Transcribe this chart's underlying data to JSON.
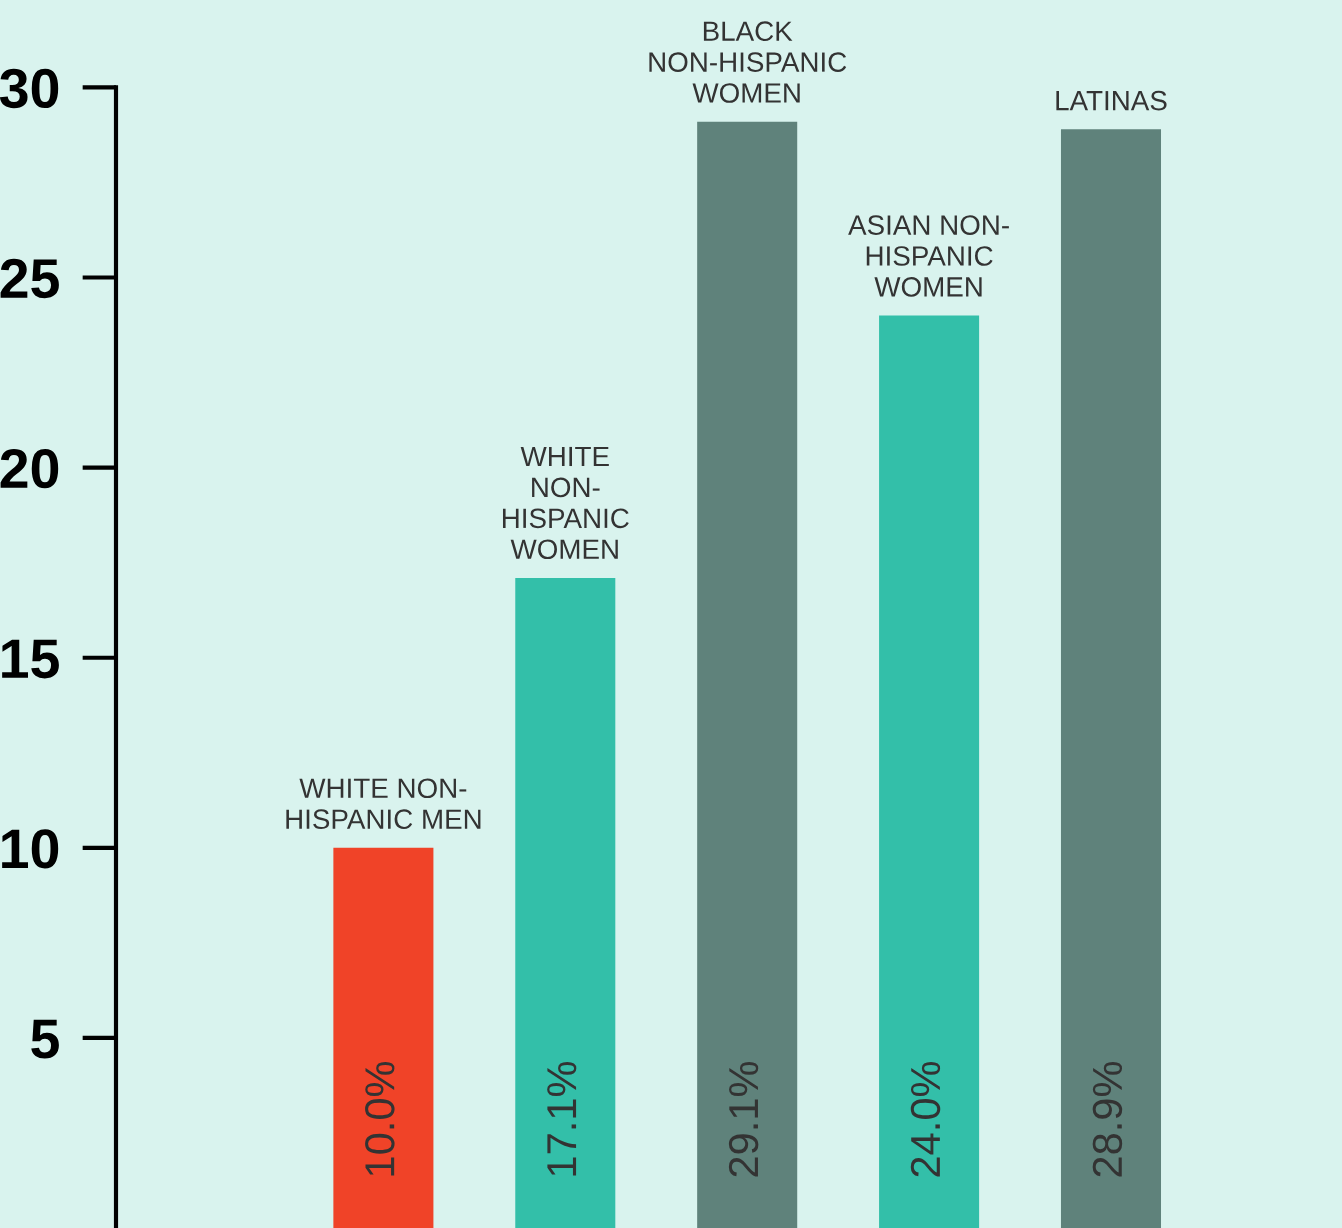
{
  "chart_data": {
    "type": "bar",
    "categories": [
      "WHITE NON-\nHISPANIC MEN",
      "WHITE\nNON-\nHISPANIC\nWOMEN",
      "BLACK\nNON-HISPANIC\nWOMEN",
      "ASIAN NON-\nHISPANIC\nWOMEN",
      "LATINAS"
    ],
    "values": [
      10.0,
      17.1,
      29.1,
      24.0,
      28.9
    ],
    "colors": [
      "#f04328",
      "#33bfa9",
      "#5f827b",
      "#33bfa9",
      "#5f827b"
    ],
    "value_labels": [
      "10.0%",
      "17.1%",
      "29.1%",
      "24.0%",
      "28.9%"
    ],
    "ylim": [
      0,
      32.3
    ],
    "yticks": [
      5,
      10,
      15,
      20,
      25,
      30
    ],
    "tick_labels": "y",
    "grid": false
  }
}
